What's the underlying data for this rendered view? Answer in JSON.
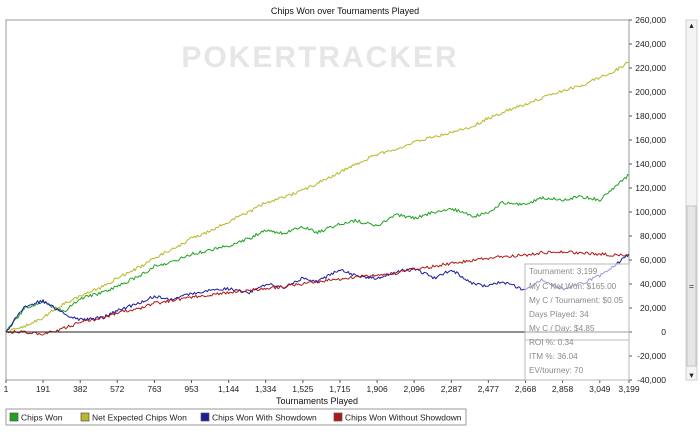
{
  "window": {
    "title": "Chips Won over Tournaments Played",
    "watermark": "POKERTRACKER"
  },
  "chart_data": {
    "type": "line",
    "title": "Chips Won over Tournaments Played",
    "xlabel": "Tournaments Played",
    "ylabel": "",
    "xlim": [
      1,
      3199
    ],
    "ylim": [
      -40000,
      260000
    ],
    "x_ticks": [
      "1",
      "191",
      "382",
      "572",
      "763",
      "953",
      "1,144",
      "1,334",
      "1,525",
      "1,715",
      "1,906",
      "2,096",
      "2,287",
      "2,477",
      "2,668",
      "2,858",
      "3,049",
      "3,199"
    ],
    "y_ticks": [
      "-40,000",
      "-20,000",
      "0",
      "20,000",
      "40,000",
      "60,000",
      "80,000",
      "100,000",
      "120,000",
      "140,000",
      "160,000",
      "180,000",
      "200,000",
      "220,000",
      "240,000",
      "260,000"
    ],
    "grid": false,
    "legend_position": "bottom",
    "series": [
      {
        "name": "Chips Won",
        "color": "#1fa31f",
        "x": [
          1,
          100,
          191,
          300,
          382,
          500,
          572,
          700,
          763,
          850,
          953,
          1050,
          1144,
          1250,
          1334,
          1425,
          1525,
          1600,
          1715,
          1800,
          1906,
          2000,
          2096,
          2200,
          2287,
          2400,
          2477,
          2550,
          2668,
          2750,
          2858,
          2950,
          3049,
          3120,
          3199
        ],
        "y": [
          0,
          20000,
          24000,
          17000,
          28000,
          33000,
          38000,
          48000,
          55000,
          58000,
          65000,
          68000,
          72000,
          78000,
          85000,
          82000,
          88000,
          83000,
          90000,
          93000,
          88000,
          98000,
          95000,
          100000,
          103000,
          96000,
          100000,
          108000,
          106000,
          112000,
          110000,
          113000,
          110000,
          120000,
          131000
        ]
      },
      {
        "name": "Net Expected Chips Won",
        "color": "#b8b828",
        "x": [
          1,
          100,
          191,
          300,
          382,
          500,
          572,
          700,
          763,
          850,
          953,
          1050,
          1144,
          1250,
          1334,
          1425,
          1525,
          1600,
          1715,
          1800,
          1906,
          2000,
          2096,
          2200,
          2287,
          2400,
          2477,
          2550,
          2668,
          2750,
          2858,
          2950,
          3049,
          3120,
          3199
        ],
        "y": [
          0,
          5000,
          12000,
          24000,
          30000,
          38000,
          45000,
          55000,
          62000,
          68000,
          78000,
          84000,
          92000,
          100000,
          108000,
          112000,
          118000,
          124000,
          133000,
          140000,
          148000,
          152000,
          158000,
          163000,
          166000,
          172000,
          178000,
          183000,
          190000,
          195000,
          201000,
          205000,
          212000,
          217000,
          225000
        ]
      },
      {
        "name": "Chips Won With Showdown",
        "color": "#1c1c9c",
        "x": [
          1,
          100,
          191,
          300,
          382,
          500,
          572,
          700,
          763,
          850,
          953,
          1050,
          1144,
          1250,
          1334,
          1425,
          1525,
          1600,
          1715,
          1800,
          1906,
          2000,
          2096,
          2200,
          2287,
          2400,
          2477,
          2550,
          2668,
          2750,
          2858,
          2950,
          3049,
          3120,
          3199
        ],
        "y": [
          0,
          22000,
          26000,
          15000,
          10000,
          12000,
          18000,
          25000,
          30000,
          27000,
          32000,
          35000,
          36000,
          33000,
          40000,
          37000,
          45000,
          42000,
          52000,
          47000,
          45000,
          50000,
          53000,
          45000,
          52000,
          40000,
          38000,
          42000,
          35000,
          43000,
          36000,
          40000,
          47000,
          55000,
          65000
        ]
      },
      {
        "name": "Chips Won Without Showdown",
        "color": "#b01818",
        "x": [
          1,
          100,
          191,
          300,
          382,
          500,
          572,
          700,
          763,
          850,
          953,
          1050,
          1144,
          1250,
          1334,
          1425,
          1525,
          1600,
          1715,
          1800,
          1906,
          2000,
          2096,
          2200,
          2287,
          2400,
          2477,
          2550,
          2668,
          2750,
          2858,
          2950,
          3049,
          3120,
          3199
        ],
        "y": [
          0,
          0,
          -2000,
          3000,
          8000,
          12000,
          16000,
          20000,
          24000,
          26000,
          29000,
          31000,
          33000,
          35000,
          36000,
          38000,
          40000,
          42000,
          44000,
          46000,
          47000,
          49000,
          52000,
          55000,
          57000,
          60000,
          61000,
          63000,
          64000,
          66000,
          67000,
          66000,
          65000,
          64000,
          64000
        ]
      }
    ]
  },
  "tooltip": {
    "lines": [
      "Tournament: 3,199",
      "My C Net Won: $165.00",
      "My C / Tournament: $0.05",
      "Days Played: 34",
      "My C / Day: $4.85",
      "ROI %: 0.34",
      "ITM %: 36.04",
      "EV/tourney: 70"
    ]
  },
  "legend": {
    "items": [
      {
        "label": "Chips Won",
        "color": "#1fa31f"
      },
      {
        "label": "Net Expected Chips Won",
        "color": "#b8b828"
      },
      {
        "label": "Chips Won With Showdown",
        "color": "#1c1c9c"
      },
      {
        "label": "Chips Won Without Showdown",
        "color": "#b01818"
      }
    ]
  },
  "scrollbar": {
    "position_fraction": 1.0,
    "thumb_label": "=",
    "arrow_up": "▴",
    "arrow_down": "▾"
  }
}
